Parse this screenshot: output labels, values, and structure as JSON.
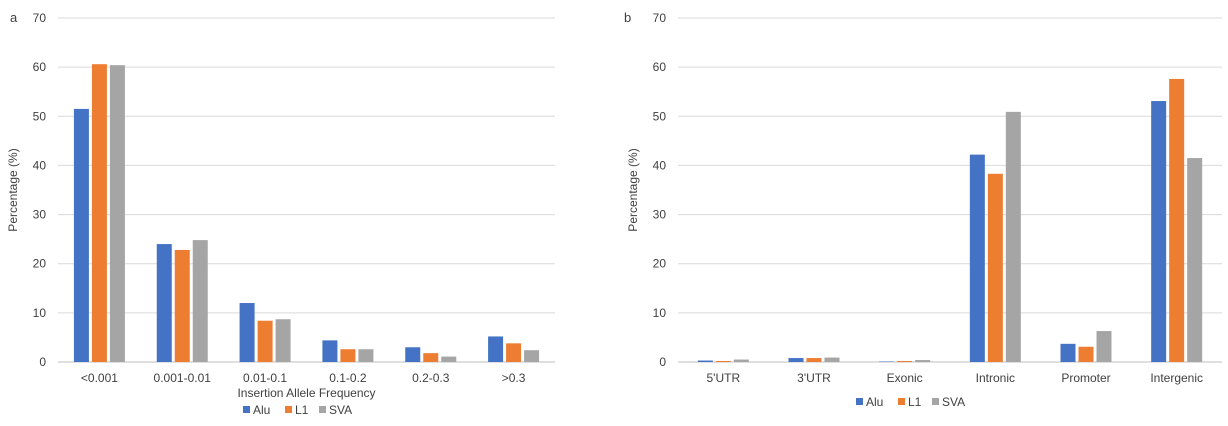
{
  "colors": {
    "Alu": "#4472c4",
    "L1": "#ed7d31",
    "SVA": "#a5a5a5",
    "grid": "#d9d9d9",
    "text": "#404040"
  },
  "chart_data": [
    {
      "panel_label": "a",
      "type": "bar",
      "title": "",
      "xlabel": "Insertion Allele Frequency",
      "ylabel": "Percentage (%)",
      "ylim": [
        0,
        70
      ],
      "yticks": [
        0,
        10,
        20,
        30,
        40,
        50,
        60,
        70
      ],
      "grid": true,
      "legend_position": "bottom",
      "categories": [
        "<0.001",
        "0.001-0.01",
        "0.01-0.1",
        "0.1-0.2",
        "0.2-0.3",
        ">0.3"
      ],
      "series": [
        {
          "name": "Alu",
          "values": [
            51.5,
            24.0,
            12.0,
            4.4,
            3.0,
            5.2
          ]
        },
        {
          "name": "L1",
          "values": [
            60.6,
            22.8,
            8.4,
            2.6,
            1.8,
            3.8
          ]
        },
        {
          "name": "SVA",
          "values": [
            60.4,
            24.8,
            8.7,
            2.6,
            1.1,
            2.4
          ]
        }
      ]
    },
    {
      "panel_label": "b",
      "type": "bar",
      "title": "",
      "xlabel": "",
      "ylabel": "Percentage (%)",
      "ylim": [
        0,
        70
      ],
      "yticks": [
        0,
        10,
        20,
        30,
        40,
        50,
        60,
        70
      ],
      "grid": true,
      "legend_position": "bottom",
      "categories": [
        "5'UTR",
        "3'UTR",
        "Exonic",
        "Intronic",
        "Promoter",
        "Intergenic"
      ],
      "series": [
        {
          "name": "Alu",
          "values": [
            0.3,
            0.8,
            0.1,
            42.2,
            3.7,
            53.1
          ]
        },
        {
          "name": "L1",
          "values": [
            0.2,
            0.8,
            0.2,
            38.3,
            3.1,
            57.6
          ]
        },
        {
          "name": "SVA",
          "values": [
            0.5,
            0.9,
            0.4,
            50.9,
            6.3,
            41.5
          ]
        }
      ]
    }
  ]
}
